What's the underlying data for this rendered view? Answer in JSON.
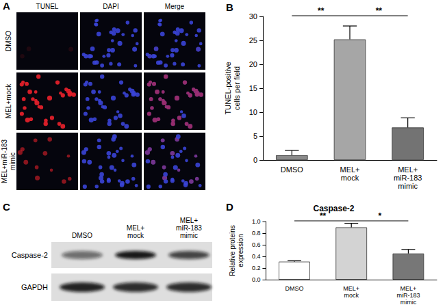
{
  "panel_a": {
    "panel": "A",
    "columns": [
      "TUNEL",
      "DAPI",
      "Merge"
    ],
    "rows": [
      "DMSO",
      "MEL+mock",
      "MEL+miR-183 mimic"
    ]
  },
  "panel_c": {
    "panel": "C",
    "lanes": [
      "DMSO",
      "MEL+mock",
      "MEL+miR-183 mimic"
    ],
    "bands": [
      "Caspase-2",
      "GAPDH"
    ]
  },
  "chart_data": [
    {
      "type": "bar",
      "panel": "B",
      "categories": [
        "DMSO",
        "MEL+mock",
        "MEL+miR-183 mimic"
      ],
      "values": [
        1.0,
        25.2,
        6.8
      ],
      "errors": [
        1.0,
        2.8,
        2.0
      ],
      "colors": [
        "#8a8a8a",
        "#a6a6a6",
        "#737373"
      ],
      "y_label": "TUNEL-positive cells per field",
      "ylim": [
        0,
        30
      ],
      "yticks": [
        0,
        5,
        10,
        15,
        20,
        25,
        30
      ],
      "grid": false,
      "annotations": [
        {
          "text": "**",
          "between": [
            "DMSO",
            "MEL+mock"
          ]
        },
        {
          "text": "**",
          "between": [
            "MEL+mock",
            "MEL+miR-183 mimic"
          ]
        }
      ]
    },
    {
      "type": "bar",
      "panel": "D",
      "title": "Caspase-2",
      "categories": [
        "DMSO",
        "MEL+mock",
        "MEL+miR-183 mimic"
      ],
      "values": [
        0.31,
        0.9,
        0.45
      ],
      "errors": [
        0.015,
        0.07,
        0.07
      ],
      "colors": [
        "#ffffff",
        "#d3d3d3",
        "#777777"
      ],
      "y_label": "Relative proteins expression",
      "ylim": [
        0,
        1
      ],
      "yticks": [
        {
          "value": 0,
          "label": "0.0"
        },
        {
          "value": 0.2,
          "label": "0.2"
        },
        {
          "value": 0.4,
          "label": "0.4"
        },
        {
          "value": 0.6,
          "label": "0.6"
        },
        {
          "value": 0.8,
          "label": "0.8"
        },
        {
          "value": 1,
          "label": "1.0"
        }
      ],
      "grid": false,
      "annotations": [
        {
          "text": "**",
          "between": [
            "DMSO",
            "MEL+mock"
          ]
        },
        {
          "text": "*",
          "between": [
            "MEL+mock",
            "MEL+miR-183 mimic"
          ]
        }
      ]
    }
  ]
}
